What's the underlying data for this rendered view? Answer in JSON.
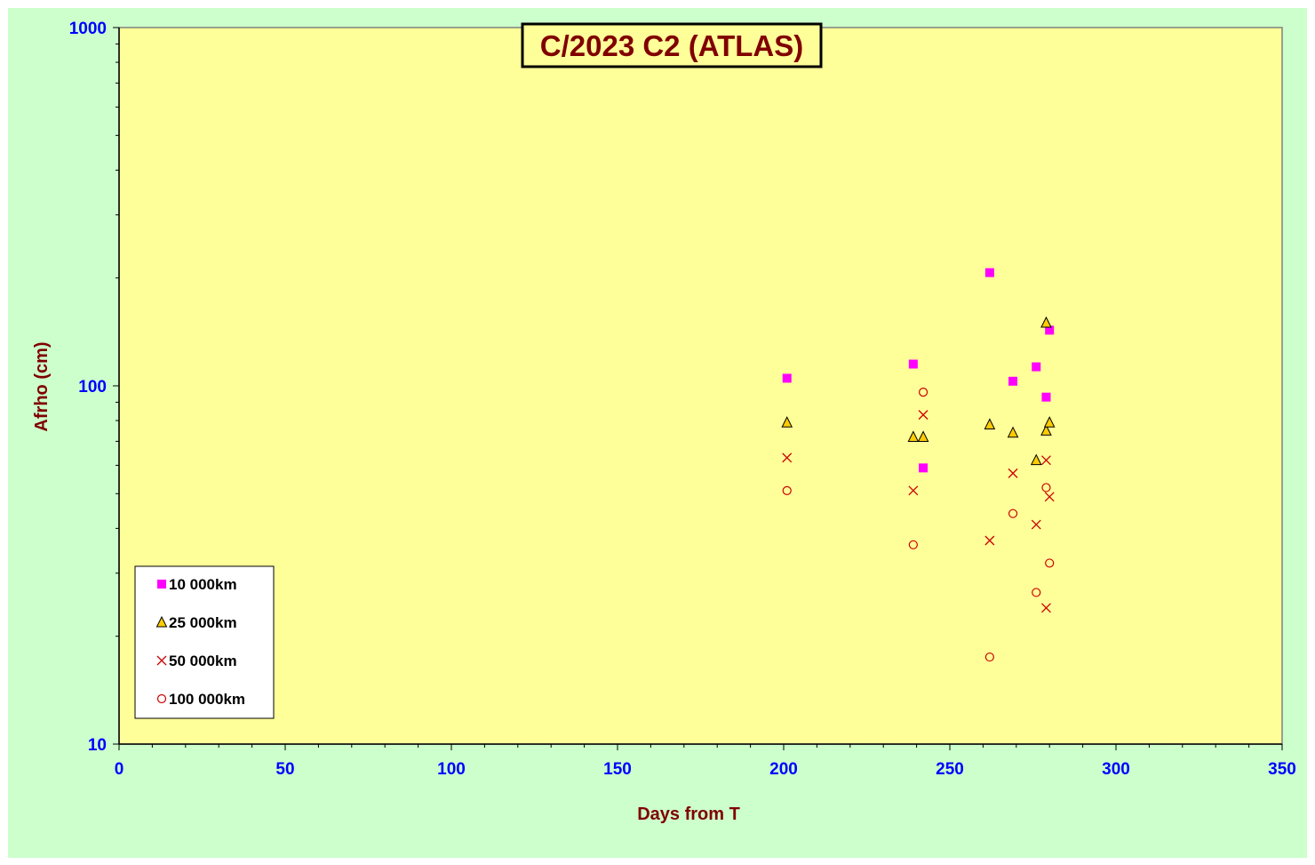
{
  "chart_data": {
    "type": "scatter",
    "title": "C/2023 C2 (ATLAS)",
    "xlabel": "Days from T",
    "ylabel": "Afrho (cm)",
    "xlim": [
      0,
      350
    ],
    "ylim": [
      10,
      1000
    ],
    "yscale": "log",
    "x_ticks": [
      "0",
      "50",
      "100",
      "150",
      "200",
      "250",
      "300",
      "350"
    ],
    "y_ticks": [
      "10",
      "100",
      "1000"
    ],
    "grid": false,
    "legend_position": "bottom-left",
    "colors": {
      "outer_background": "#ccffcc",
      "plot_background": "#ffff99",
      "tick_labels": "#0000ff",
      "titles": "#800000"
    },
    "series": [
      {
        "name": "10 000km",
        "marker": "square",
        "color": "#ff00ff",
        "points": [
          [
            201,
            105
          ],
          [
            239,
            115
          ],
          [
            242,
            59
          ],
          [
            262,
            207
          ],
          [
            269,
            103
          ],
          [
            276,
            113
          ],
          [
            279,
            93
          ],
          [
            280,
            143
          ]
        ]
      },
      {
        "name": "25 000km",
        "marker": "triangle",
        "color": "#ffcc00",
        "points": [
          [
            201,
            79
          ],
          [
            239,
            72
          ],
          [
            242,
            72
          ],
          [
            262,
            78
          ],
          [
            269,
            74
          ],
          [
            276,
            62
          ],
          [
            279,
            75
          ],
          [
            279,
            150
          ],
          [
            280,
            79
          ]
        ]
      },
      {
        "name": "50 000km",
        "marker": "x",
        "color": "#cc0000",
        "points": [
          [
            201,
            63
          ],
          [
            239,
            51
          ],
          [
            242,
            83
          ],
          [
            262,
            37
          ],
          [
            269,
            57
          ],
          [
            276,
            41
          ],
          [
            279,
            24
          ],
          [
            279,
            62
          ],
          [
            280,
            49
          ]
        ]
      },
      {
        "name": "100 000km",
        "marker": "circle",
        "color": "#cc0000",
        "points": [
          [
            201,
            51
          ],
          [
            239,
            36
          ],
          [
            242,
            96
          ],
          [
            262,
            17.5
          ],
          [
            269,
            44
          ],
          [
            276,
            26.5
          ],
          [
            279,
            52
          ],
          [
            280,
            32
          ]
        ]
      }
    ]
  }
}
